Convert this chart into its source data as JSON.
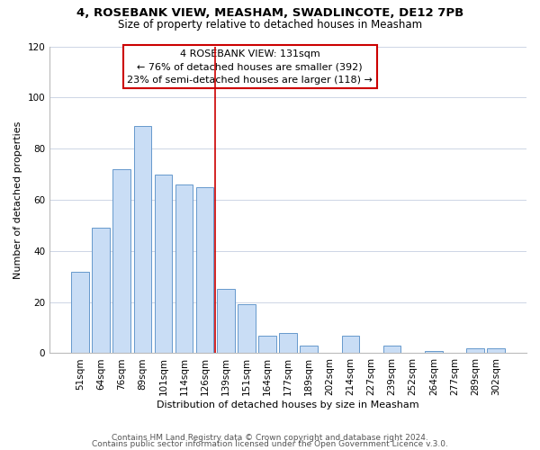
{
  "title1": "4, ROSEBANK VIEW, MEASHAM, SWADLINCOTE, DE12 7PB",
  "title2": "Size of property relative to detached houses in Measham",
  "xlabel": "Distribution of detached houses by size in Measham",
  "ylabel": "Number of detached properties",
  "bar_labels": [
    "51sqm",
    "64sqm",
    "76sqm",
    "89sqm",
    "101sqm",
    "114sqm",
    "126sqm",
    "139sqm",
    "151sqm",
    "164sqm",
    "177sqm",
    "189sqm",
    "202sqm",
    "214sqm",
    "227sqm",
    "239sqm",
    "252sqm",
    "264sqm",
    "277sqm",
    "289sqm",
    "302sqm"
  ],
  "bar_values": [
    32,
    49,
    72,
    89,
    70,
    66,
    65,
    25,
    19,
    7,
    8,
    3,
    0,
    7,
    0,
    3,
    0,
    1,
    0,
    2,
    2
  ],
  "bar_color": "#c9ddf5",
  "bar_edge_color": "#6699cc",
  "vline_x": 7.0,
  "vline_color": "#cc0000",
  "ylim": [
    0,
    120
  ],
  "yticks": [
    0,
    20,
    40,
    60,
    80,
    100,
    120
  ],
  "annotation_line1": "4 ROSEBANK VIEW: 131sqm",
  "annotation_line2": "← 76% of detached houses are smaller (392)",
  "annotation_line3": "23% of semi-detached houses are larger (118) →",
  "footer1": "Contains HM Land Registry data © Crown copyright and database right 2024.",
  "footer2": "Contains public sector information licensed under the Open Government Licence v.3.0.",
  "ann_box_color": "#cc0000",
  "title1_fontsize": 9.5,
  "title2_fontsize": 8.5,
  "axis_fontsize": 8.0,
  "tick_fontsize": 7.5,
  "footer_fontsize": 6.5
}
